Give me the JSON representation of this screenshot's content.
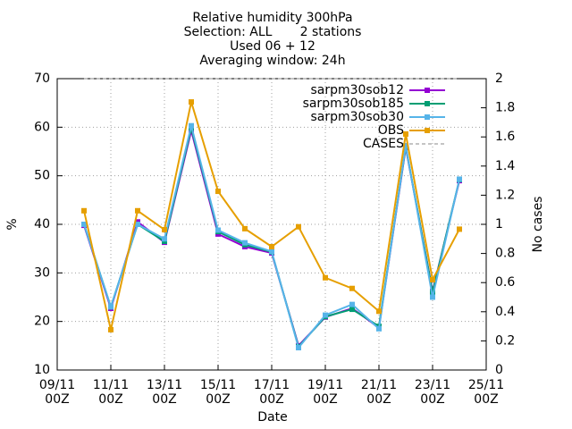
{
  "chart_data": {
    "type": "line",
    "title": [
      "Relative humidity 300hPa",
      "Selection: ALL       2 stations",
      "Used 06 + 12",
      "Averaging window: 24h"
    ],
    "xlabel": "Date",
    "ylabel": "%",
    "y2label": "No cases",
    "x": [
      "10/11 00Z",
      "11/11 00Z",
      "12/11 00Z",
      "13/11 00Z",
      "14/11 00Z",
      "15/11 00Z",
      "16/11 00Z",
      "17/11 00Z",
      "18/11 00Z",
      "19/11 00Z",
      "20/11 00Z",
      "21/11 00Z",
      "22/11 00Z",
      "23/11 00Z",
      "24/11 00Z"
    ],
    "series": [
      {
        "name": "sarpm30sob12",
        "color": "#9400d3",
        "values": [
          39.8,
          22.7,
          40.5,
          36.3,
          59.3,
          38.0,
          35.4,
          34.1,
          15.0,
          20.9,
          22.7,
          18.7,
          55.8,
          26.2,
          49.0
        ]
      },
      {
        "name": "sarpm30sob185",
        "color": "#009e73",
        "values": [
          40.0,
          23.0,
          40.0,
          36.5,
          59.8,
          38.5,
          35.8,
          34.3,
          14.8,
          21.0,
          22.5,
          19.0,
          56.0,
          26.0,
          49.2
        ]
      },
      {
        "name": "sarpm30sob30",
        "color": "#56b4e9",
        "values": [
          40.0,
          23.0,
          40.0,
          37.0,
          60.3,
          38.8,
          36.2,
          34.4,
          14.6,
          21.3,
          23.5,
          18.5,
          56.2,
          25.0,
          49.3
        ]
      },
      {
        "name": "OBS",
        "color": "#e69f00",
        "values": [
          42.8,
          18.3,
          42.8,
          38.9,
          65.2,
          46.8,
          39.1,
          35.4,
          39.5,
          29.0,
          26.8,
          22.1,
          58.6,
          28.6,
          39.0
        ]
      },
      {
        "name": "CASES",
        "color": "#888888",
        "axis": "y2",
        "dashed": true,
        "values": [
          2,
          2,
          2,
          2,
          2,
          2,
          2,
          2,
          2,
          2,
          2,
          2,
          2,
          2,
          2
        ]
      }
    ],
    "xlim": [
      "09/11 00Z",
      "25/11 00Z"
    ],
    "xticks": [
      "09/11 00Z",
      "11/11 00Z",
      "13/11 00Z",
      "15/11 00Z",
      "17/11 00Z",
      "19/11 00Z",
      "21/11 00Z",
      "23/11 00Z",
      "25/11 00Z"
    ],
    "ylim": [
      10,
      70
    ],
    "yticks": [
      10,
      20,
      30,
      40,
      50,
      60,
      70
    ],
    "y2lim": [
      0,
      2
    ],
    "y2ticks": [
      0,
      0.2,
      0.4,
      0.6,
      0.8,
      1,
      1.2,
      1.4,
      1.6,
      1.8,
      2
    ],
    "grid": true,
    "legend": "top-right"
  }
}
